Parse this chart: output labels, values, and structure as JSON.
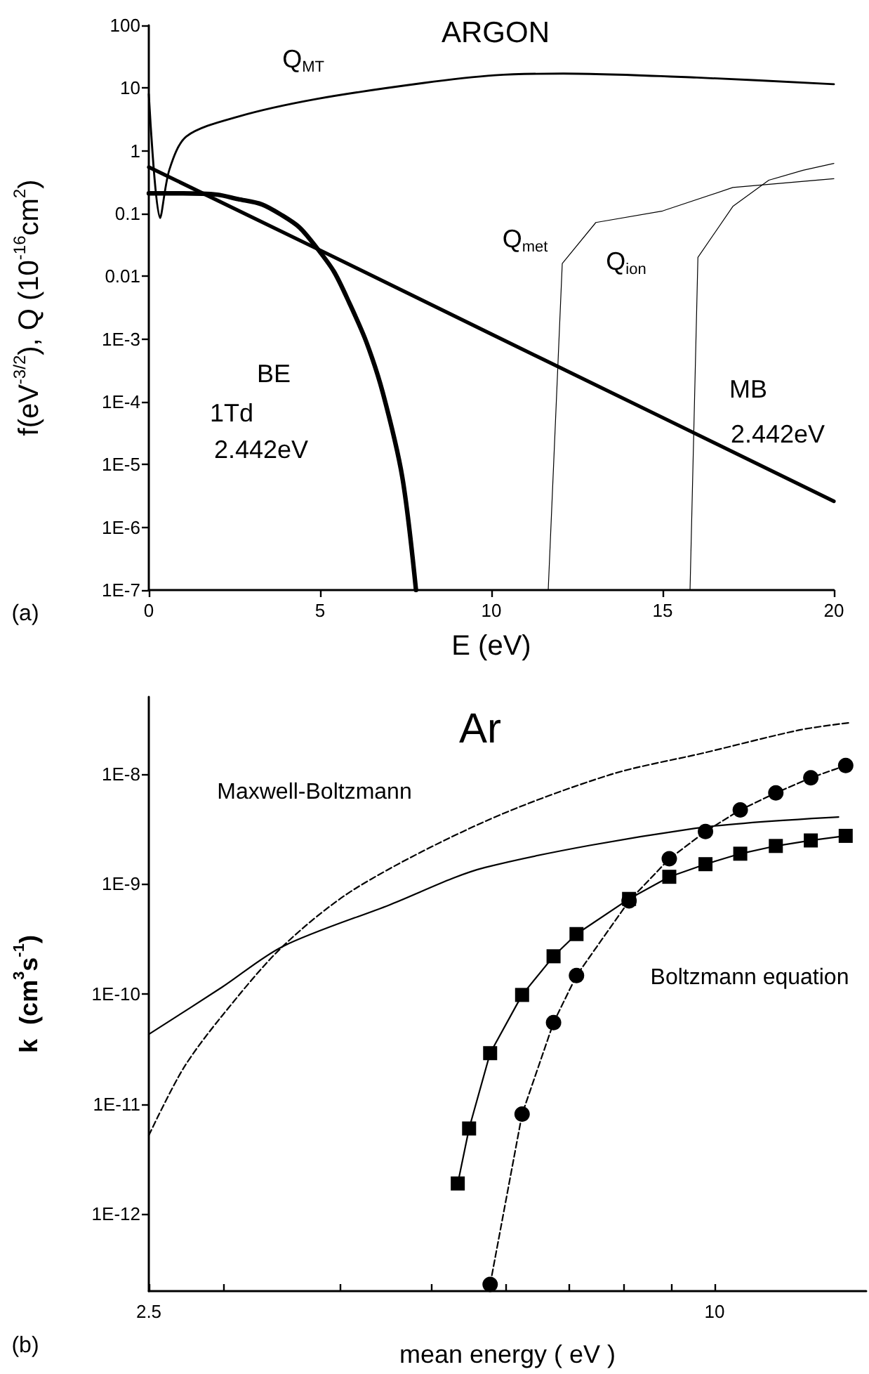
{
  "chart_data": [
    {
      "type": "line",
      "title": "ARGON",
      "xlabel": "E (eV)",
      "ylabel": "f(eV$^{-3/2}$), Q (10$^{-16}$cm$^{2}$)",
      "log": "y",
      "xlim": [
        0,
        20
      ],
      "xticks": [
        0,
        5,
        10,
        15,
        20
      ],
      "ylim": [
        1e-07,
        100
      ],
      "yticks": [
        100,
        10,
        1,
        0.1,
        0.01,
        {
          "value": 0.001,
          "label": "1E-3"
        },
        {
          "value": 0.0001,
          "label": "1E-4"
        },
        {
          "value": 1e-05,
          "label": "1E-5"
        },
        {
          "value": 1e-06,
          "label": "1E-6"
        },
        {
          "value": 1e-07,
          "label": "1E-7"
        }
      ],
      "grid": false,
      "marker": "none",
      "line_style": "solid",
      "series": [
        {
          "color": "#000000",
          "x": [
            0,
            0.33,
            0.6,
            1.1,
            2.6,
            4.9,
            8,
            10.1,
            12.1,
            16,
            20
          ],
          "values": [
            8,
            0.085,
            0.5,
            1.7,
            3.5,
            6.7,
            12,
            16,
            17,
            14.7,
            11.5
          ]
        },
        {
          "color": "#000000",
          "x": [
            0,
            5,
            10,
            15,
            20
          ],
          "values": [
            0.55,
            0.026,
            0.0012,
            5.6e-05,
            2.6e-06
          ]
        },
        {
          "color": "#000000",
          "x": [
            0,
            1,
            2,
            2.6,
            3.3,
            3.9,
            4.4,
            4.87,
            5.4,
            5.85,
            6.35,
            6.83,
            7.4,
            7.8
          ],
          "values": [
            0.21,
            0.21,
            0.2,
            0.17,
            0.14,
            0.093,
            0.06,
            0.03,
            0.012,
            0.0038,
            0.0009,
            0.00014,
            6.3e-06,
            1e-07
          ]
        },
        {
          "color": "#000000",
          "x": [
            11.66,
            12.07,
            13.05,
            15,
            17.05,
            20
          ],
          "values": [
            1e-07,
            0.016,
            0.072,
            0.11,
            0.26,
            0.36
          ]
        },
        {
          "color": "#000000",
          "x": [
            15.8,
            16.03,
            17.05,
            18.1,
            19.1,
            20
          ],
          "values": [
            1e-07,
            0.02,
            0.13,
            0.34,
            0.49,
            0.63
          ]
        }
      ],
      "annotations": [
        "Q$_{MT}$",
        "Q$_{met}$",
        "Q$_{ion}$",
        "BE",
        "1Td",
        "2.442eV",
        "MB",
        "2.442eV",
        "(a)"
      ]
    },
    {
      "type": "line",
      "title": "Ar",
      "xlabel": "mean energy ( eV )",
      "ylabel": "k  (cm$^{3}$s$^{-1}$)",
      "log": "xy",
      "xlim": [
        2.5,
        14.5
      ],
      "xticks": [
        2.5,
        {
          "value": 3,
          "label": null
        },
        {
          "value": 4,
          "label": null
        },
        {
          "value": 5,
          "label": null
        },
        {
          "value": 6,
          "label": null
        },
        {
          "value": 7,
          "label": null
        },
        {
          "value": 8,
          "label": null
        },
        {
          "value": 9,
          "label": null
        },
        10
      ],
      "ylim": [
        2e-13,
        5e-08
      ],
      "yticks": [
        {
          "value": 1e-08,
          "label": "1E-8"
        },
        {
          "value": 1e-09,
          "label": "1E-9"
        },
        {
          "value": 1e-10,
          "label": "1E-10"
        },
        {
          "value": 1e-11,
          "label": "1E-11"
        },
        {
          "value": 1e-12,
          "label": "1E-12"
        }
      ],
      "grid": false,
      "series": [
        {
          "color": "#000000",
          "marker": "none",
          "line_style": "solid",
          "x": [
            2.5,
            2.99,
            3.47,
            4.5,
            5.7,
            9.54,
            13.55
          ],
          "values": [
            4.3e-11,
            1.15e-10,
            2.7e-10,
            6.4e-10,
            1.41e-09,
            3.2e-09,
            4.05e-09
          ]
        },
        {
          "color": "#000000",
          "marker": "none",
          "line_style": "dashed",
          "x": [
            2.5,
            2.72,
            2.99,
            3.47,
            4.15,
            5.7,
            7.74,
            9.75,
            12.32,
            13.88
          ],
          "values": [
            5.2e-12,
            2.1e-11,
            6.3e-11,
            2.7e-10,
            9.1e-10,
            3.7e-09,
            9.8e-09,
            1.55e-08,
            2.5e-08,
            2.9e-08
          ]
        },
        {
          "color": "#000000",
          "marker": "square",
          "line_style": "solid",
          "x": [
            5.33,
            5.48,
            5.77,
            6.24,
            6.74,
            7.13,
            8.11,
            8.95,
            9.78,
            10.65,
            11.62,
            12.66,
            13.79
          ],
          "values": [
            1.9e-12,
            6e-12,
            2.9e-11,
            9.8e-11,
            2.2e-10,
            3.5e-10,
            7.3e-10,
            1.16e-09,
            1.51e-09,
            1.88e-09,
            2.21e-09,
            2.48e-09,
            2.73e-09
          ]
        },
        {
          "color": "#000000",
          "marker": "circle",
          "line_style": "dashed",
          "x": [
            5.77,
            6.24,
            6.74,
            7.13,
            8.11,
            8.95,
            9.78,
            10.65,
            11.62,
            12.66,
            13.79
          ],
          "values": [
            2.3e-13,
            8.1e-12,
            5.5e-11,
            1.47e-10,
            7e-10,
            1.69e-09,
            2.99e-09,
            4.7e-09,
            6.7e-09,
            9.2e-09,
            1.19e-08
          ]
        }
      ],
      "annotations": [
        "Maxwell-Boltzmann",
        "Boltzmann equation",
        "(b)"
      ]
    }
  ]
}
